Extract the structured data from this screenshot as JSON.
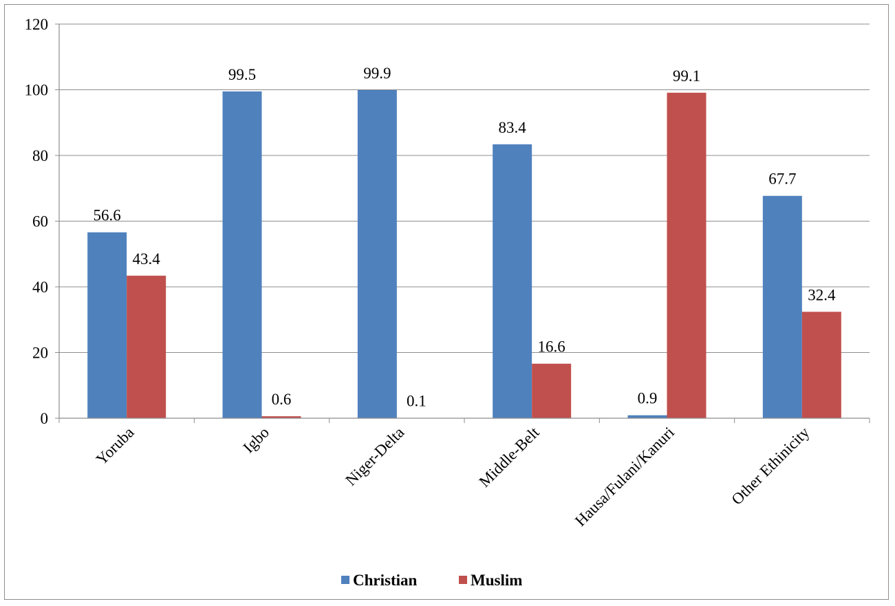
{
  "chart_data": {
    "type": "bar",
    "title": "",
    "xlabel": "",
    "ylabel": "",
    "categories": [
      "Yoruba",
      "Igbo",
      "Niger-Delta",
      "Middle-Belt",
      "Hausa/Fulani/Kanuri",
      "Other Ethinicity"
    ],
    "series": [
      {
        "name": "Christian",
        "color": "#4f81bd",
        "values": [
          56.6,
          99.5,
          99.9,
          83.4,
          0.9,
          67.7
        ]
      },
      {
        "name": "Muslim",
        "color": "#c0504d",
        "values": [
          43.4,
          0.6,
          0.1,
          16.6,
          99.1,
          32.4
        ]
      }
    ],
    "ylim": [
      0,
      120
    ],
    "yticks": [
      "0",
      "20",
      "40",
      "60",
      "80",
      "100",
      "120"
    ],
    "grid": true,
    "legend_position": "bottom"
  }
}
